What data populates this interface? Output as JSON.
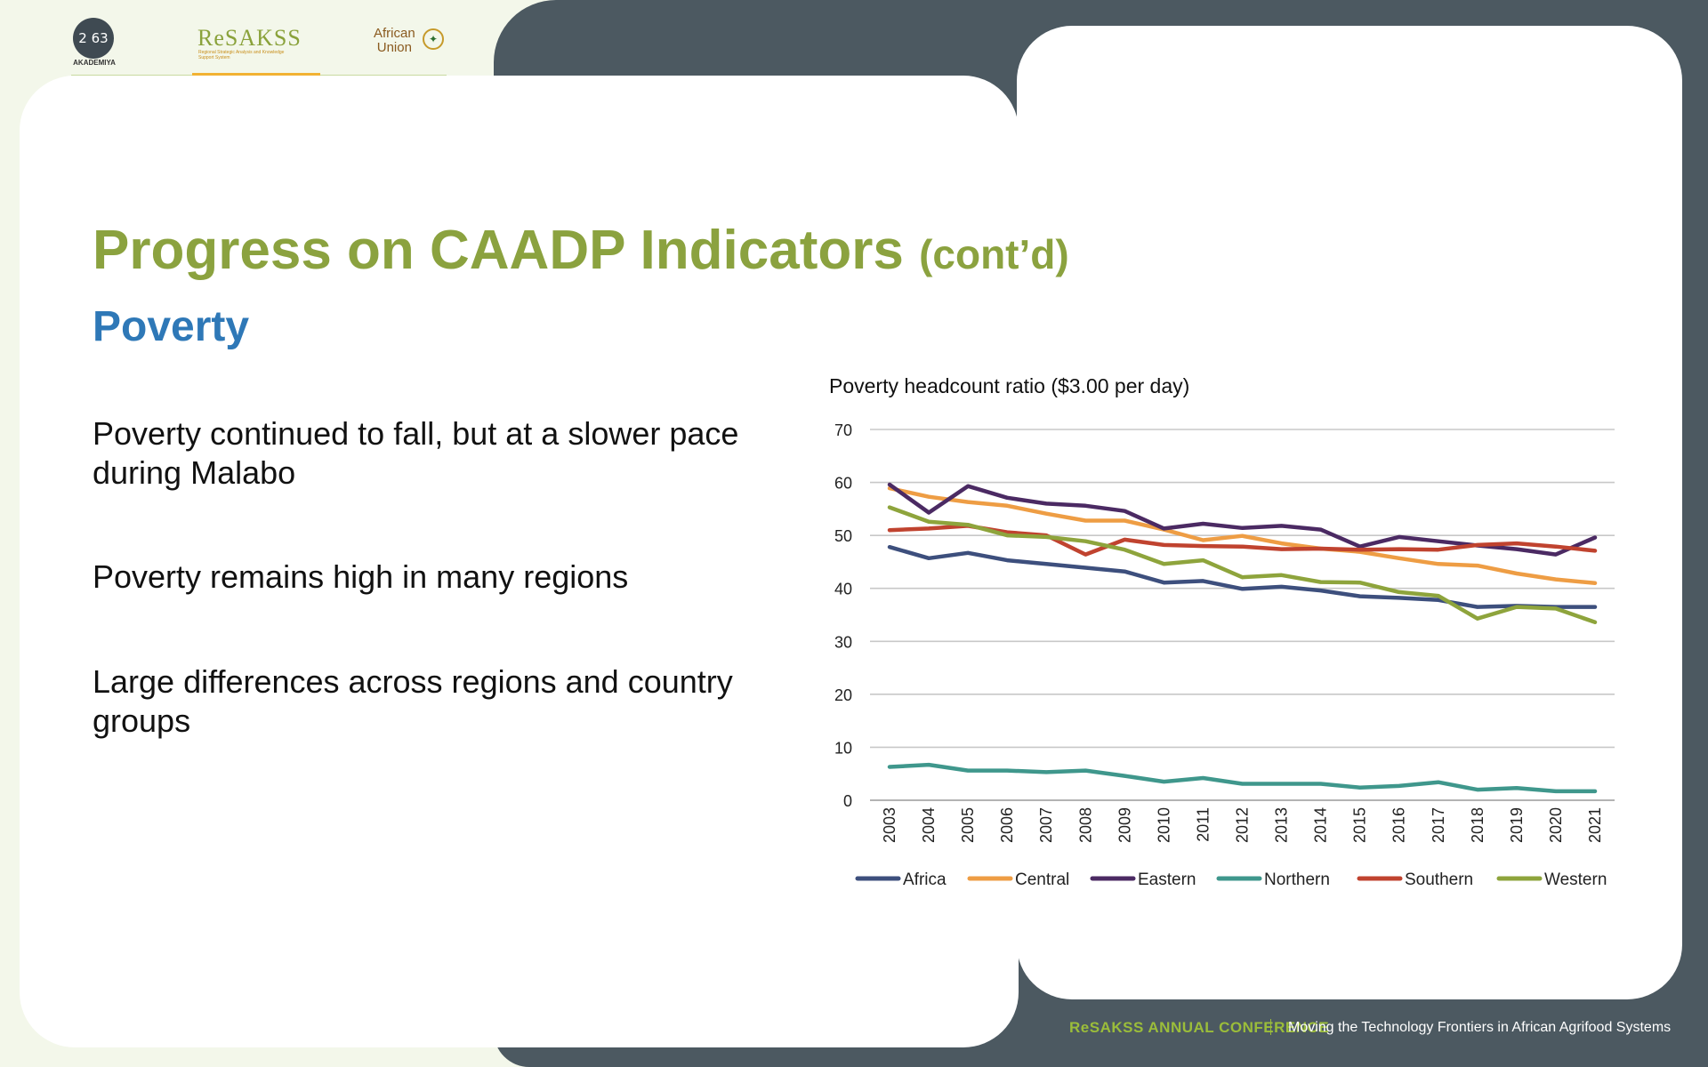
{
  "logos": {
    "akademiya_digits": "2 63",
    "akademiya_label": "AKADEMIYA",
    "resakss": "ReSAKSS",
    "resakss_sub": "Regional Strategic Analysis and Knowledge Support System",
    "au_line1": "African",
    "au_line2": "Union"
  },
  "slide": {
    "title_main": "Progress on CAADP Indicators",
    "title_suffix": "(cont’d)",
    "subtitle": "Poverty",
    "bullets": [
      "Poverty continued to fall, but at a slower pace during Malabo",
      "Poverty remains high in many regions",
      "Large differences across regions and country groups"
    ]
  },
  "footer": {
    "brand": "ReSAKSS ANNUAL CONFERENCE",
    "tagline": "Moving the Technology Frontiers in African Agrifood Systems"
  },
  "chart_data": {
    "type": "line",
    "title": "Poverty headcount ratio ($3.00 per day)",
    "xlabel": "",
    "ylabel": "",
    "ylim": [
      0,
      70
    ],
    "yticks": [
      0,
      10,
      20,
      30,
      40,
      50,
      60,
      70
    ],
    "grid": true,
    "legend": "bottom",
    "categories": [
      "2003",
      "2004",
      "2005",
      "2006",
      "2007",
      "2008",
      "2009",
      "2010",
      "2011",
      "2012",
      "2013",
      "2014",
      "2015",
      "2016",
      "2017",
      "2018",
      "2019",
      "2020",
      "2021"
    ],
    "series": [
      {
        "name": "Africa",
        "color": "#3d4f7d",
        "values": [
          47.8,
          45.7,
          46.7,
          45.3,
          44.6,
          43.9,
          43.2,
          41.1,
          41.4,
          39.9,
          40.3,
          39.6,
          38.5,
          38.2,
          37.8,
          36.5,
          36.7,
          36.5,
          36.5
        ]
      },
      {
        "name": "Central",
        "color": "#ee9d44",
        "values": [
          58.9,
          57.3,
          56.3,
          55.6,
          54.1,
          52.8,
          52.8,
          51.1,
          49.1,
          49.9,
          48.5,
          47.5,
          46.9,
          45.7,
          44.6,
          44.3,
          42.8,
          41.7,
          41.0
        ]
      },
      {
        "name": "Eastern",
        "color": "#4b2a63",
        "values": [
          59.6,
          54.3,
          59.3,
          57.1,
          56.0,
          55.6,
          54.6,
          51.3,
          52.2,
          51.4,
          51.8,
          51.1,
          47.9,
          49.7,
          48.9,
          48.1,
          47.4,
          46.4,
          49.6
        ]
      },
      {
        "name": "Northern",
        "color": "#3f978c",
        "values": [
          6.3,
          6.7,
          5.6,
          5.6,
          5.3,
          5.6,
          4.6,
          3.5,
          4.2,
          3.1,
          3.1,
          3.1,
          2.4,
          2.7,
          3.4,
          2.0,
          2.3,
          1.7,
          1.7
        ]
      },
      {
        "name": "Southern",
        "color": "#c0432f",
        "values": [
          51.0,
          51.3,
          51.8,
          50.6,
          50.0,
          46.4,
          49.2,
          48.2,
          48.0,
          47.9,
          47.4,
          47.5,
          47.3,
          47.4,
          47.3,
          48.2,
          48.5,
          47.9,
          47.1
        ]
      },
      {
        "name": "Western",
        "color": "#8ea43c",
        "values": [
          55.3,
          52.6,
          52.0,
          50.0,
          49.7,
          48.9,
          47.3,
          44.6,
          45.3,
          42.1,
          42.5,
          41.2,
          41.1,
          39.3,
          38.6,
          34.3,
          36.5,
          36.2,
          33.6
        ]
      }
    ]
  }
}
